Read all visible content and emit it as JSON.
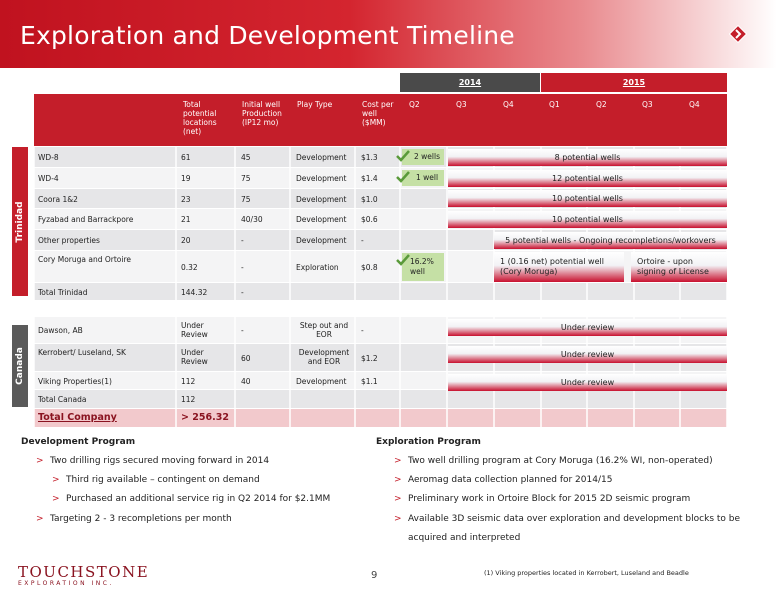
{
  "header": {
    "title": "Exploration and Development Timeline"
  },
  "years": [
    "2014",
    "2015"
  ],
  "columns": {
    "locations": "Total potential locations (net)",
    "initial_production": "Initial well Production (IP12 mo)",
    "play_type": "Play Type",
    "cost": "Cost per well ($MM)",
    "quarters": [
      "Q2",
      "Q3",
      "Q4",
      "Q1",
      "Q2",
      "Q3",
      "Q4"
    ]
  },
  "regions": {
    "trinidad": "Trinidad",
    "canada": "Canada"
  },
  "rows": [
    {
      "name": "WD-8",
      "locations": "61",
      "ip": "45",
      "play": "Development",
      "cost": "$1.3"
    },
    {
      "name": "WD-4",
      "locations": "19",
      "ip": "75",
      "play": "Development",
      "cost": "$1.4"
    },
    {
      "name": "Coora 1&2",
      "locations": "23",
      "ip": "75",
      "play": "Development",
      "cost": "$1.0"
    },
    {
      "name": "Fyzabad and Barrackpore",
      "locations": "21",
      "ip": "40/30",
      "play": "Development",
      "cost": "$0.6"
    },
    {
      "name": "Other properties",
      "locations": "20",
      "ip": "-",
      "play": "Development",
      "cost": "-"
    },
    {
      "name": "Cory Moruga and Ortoire",
      "locations": "0.32",
      "ip": "-",
      "play": "Exploration",
      "cost": "$0.8"
    },
    {
      "name": "Total Trinidad",
      "locations": "144.32",
      "ip": "-",
      "play": "",
      "cost": ""
    },
    {
      "name": "Dawson, AB",
      "locations": "Under Review",
      "ip": "-",
      "play": "Step out and EOR",
      "cost": "-"
    },
    {
      "name": "Kerrobert/ Luseland, SK",
      "locations": "Under Review",
      "ip": "60",
      "play": "Development and EOR",
      "cost": "$1.2"
    },
    {
      "name": "Viking Properties(1)",
      "locations": "112",
      "ip": "40",
      "play": "Development",
      "cost": "$1.1"
    },
    {
      "name": "Total Canada",
      "locations": "112",
      "ip": "",
      "play": "",
      "cost": ""
    },
    {
      "name": "Total Company",
      "locations": "> 256.32",
      "ip": "",
      "play": "",
      "cost": ""
    }
  ],
  "timeline": {
    "wd8_green": "2 wells",
    "wd8_bar": "8 potential wells",
    "wd4_green": "1 well",
    "wd4_bar": "12 potential wells",
    "coora_bar": "10  potential wells",
    "fyzabad_bar": "10  potential wells",
    "other_bar": "5 potential wells - Ongoing recompletions/workovers",
    "cory_green": "16.2% well",
    "cory_bar": "1 (0.16 net) potential well (Cory Moruga)",
    "ortoire_bar": "Ortoire - upon signing of License",
    "dawson_bar": "Under review",
    "kerrobert_bar": "Under review",
    "viking_bar": "Under review"
  },
  "development": {
    "title": "Development Program",
    "items": [
      "Two drilling rigs secured moving forward in 2014",
      "Third rig available – contingent on demand",
      "Purchased an additional service rig in Q2 2014 for $2.1MM",
      "Targeting 2 - 3 recompletions per month"
    ]
  },
  "exploration": {
    "title": "Exploration Program",
    "items": [
      "Two well drilling program at Cory Moruga (16.2% WI, non-operated)",
      "Aeromag data collection planned for 2014/15",
      "Preliminary work in Ortoire Block for 2015 2D seismic program",
      "Available 3D seismic data over exploration and development blocks to be",
      "acquired and interpreted"
    ]
  },
  "bullet_glyph": ">",
  "footer": {
    "page": "9",
    "note": "(1) Viking properties located in Kerrobert, Luseland and Beadle",
    "logo_brand": "TOUCHSTONE",
    "logo_sub": "EXPLORATION INC."
  },
  "colors": {
    "accent": "#c41e2a",
    "dark": "#4a4a4a",
    "green": "#c5e0a5"
  }
}
